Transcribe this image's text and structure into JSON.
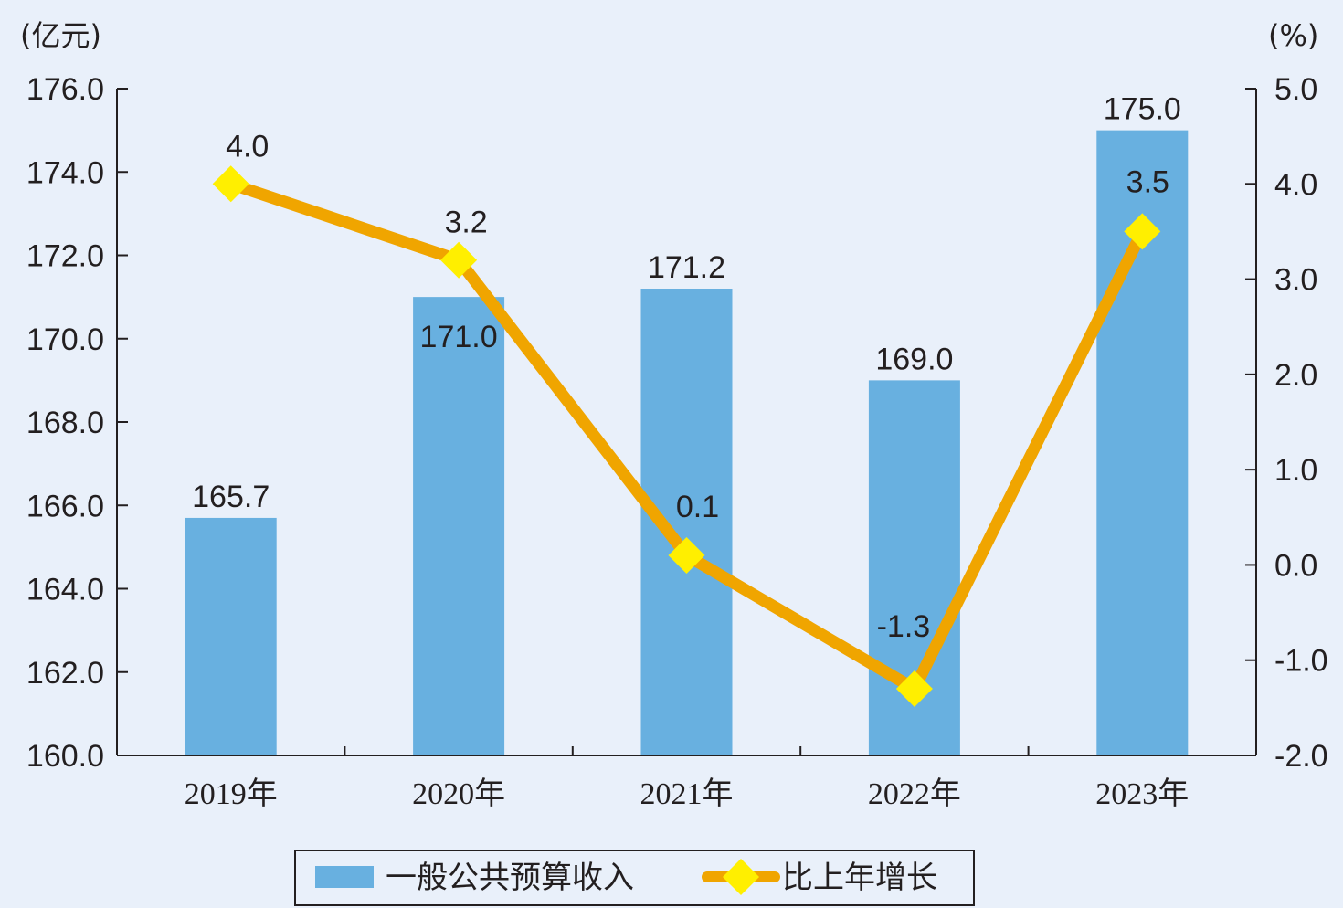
{
  "chart_data": {
    "type": "bar+line",
    "categories": [
      "2019年",
      "2020年",
      "2021年",
      "2022年",
      "2023年"
    ],
    "series": [
      {
        "name": "一般公共预算收入",
        "type": "bar",
        "axis": "left",
        "values": [
          165.7,
          171.0,
          171.2,
          169.0,
          175.0
        ],
        "labels": [
          "165.7",
          "171.0",
          "171.2",
          "169.0",
          "175.0"
        ],
        "color": "#68b0e0"
      },
      {
        "name": "比上年增长",
        "type": "line",
        "axis": "right",
        "values": [
          4.0,
          3.2,
          0.1,
          -1.3,
          3.5
        ],
        "labels": [
          "4.0",
          "3.2",
          "0.1",
          "-1.3",
          "3.5"
        ],
        "color": "#f0a500",
        "marker_color": "#ffef00"
      }
    ],
    "y_left": {
      "unit": "(亿元)",
      "ylim": [
        160,
        176
      ],
      "ticks": [
        "160.0",
        "162.0",
        "164.0",
        "166.0",
        "168.0",
        "170.0",
        "172.0",
        "174.0",
        "176.0"
      ]
    },
    "y_right": {
      "unit": "(%)",
      "ylim": [
        -2,
        5
      ],
      "ticks": [
        "-2.0",
        "-1.0",
        "0.0",
        "1.0",
        "2.0",
        "3.0",
        "4.0",
        "5.0"
      ]
    },
    "legend_position": "bottom-center",
    "grid": false
  }
}
